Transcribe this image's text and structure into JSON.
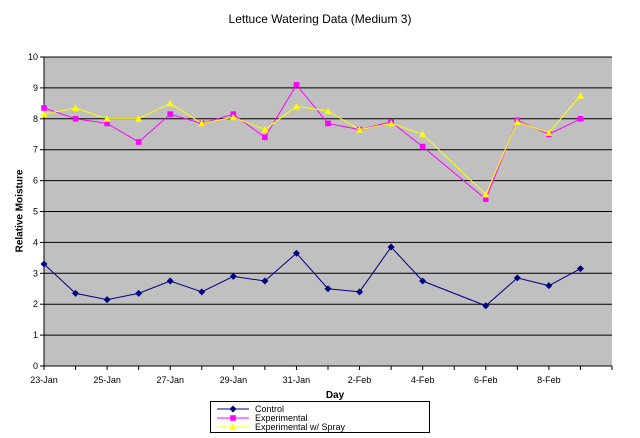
{
  "chart_data": {
    "type": "line",
    "title": "Lettuce Watering Data (Medium 3)",
    "xlabel": "Day",
    "ylabel": "Relative Moisture",
    "ylim": [
      0,
      10
    ],
    "yticks": [
      "0",
      "1",
      "2",
      "3",
      "4",
      "5",
      "6",
      "7",
      "8",
      "9",
      "10"
    ],
    "xtick_labels": [
      "23-Jan",
      "25-Jan",
      "27-Jan",
      "29-Jan",
      "31-Jan",
      "2-Feb",
      "4-Feb",
      "6-Feb",
      "8-Feb"
    ],
    "x_days": [
      "23-Jan",
      "24-Jan",
      "25-Jan",
      "26-Jan",
      "27-Jan",
      "28-Jan",
      "29-Jan",
      "30-Jan",
      "31-Jan",
      "1-Feb",
      "2-Feb",
      "3-Feb",
      "4-Feb",
      "5-Feb",
      "6-Feb",
      "7-Feb",
      "8-Feb",
      "9-Feb"
    ],
    "grid": true,
    "legend_position": "bottom",
    "series": [
      {
        "name": "Control",
        "color": "#000080",
        "marker": "diamond",
        "x": [
          "23-Jan",
          "24-Jan",
          "25-Jan",
          "26-Jan",
          "27-Jan",
          "28-Jan",
          "29-Jan",
          "30-Jan",
          "31-Jan",
          "1-Feb",
          "2-Feb",
          "3-Feb",
          "4-Feb",
          "6-Feb",
          "7-Feb",
          "8-Feb",
          "9-Feb"
        ],
        "values": [
          3.3,
          2.35,
          2.15,
          2.35,
          2.75,
          2.4,
          2.9,
          2.75,
          3.65,
          2.5,
          2.4,
          3.85,
          2.75,
          1.95,
          2.85,
          2.6,
          3.15
        ]
      },
      {
        "name": "Experimental",
        "color": "#ff00ff",
        "marker": "square",
        "x": [
          "23-Jan",
          "24-Jan",
          "25-Jan",
          "26-Jan",
          "27-Jan",
          "28-Jan",
          "29-Jan",
          "30-Jan",
          "31-Jan",
          "1-Feb",
          "2-Feb",
          "3-Feb",
          "4-Feb",
          "6-Feb",
          "7-Feb",
          "8-Feb",
          "9-Feb"
        ],
        "values": [
          8.35,
          8.0,
          7.85,
          7.25,
          8.15,
          7.85,
          8.15,
          7.4,
          9.1,
          7.85,
          7.65,
          7.9,
          7.1,
          5.4,
          7.95,
          7.5,
          8.0
        ]
      },
      {
        "name": "Experimental w/ Spray",
        "color": "#ffff00",
        "marker": "triangle",
        "x": [
          "23-Jan",
          "24-Jan",
          "25-Jan",
          "26-Jan",
          "27-Jan",
          "28-Jan",
          "29-Jan",
          "30-Jan",
          "31-Jan",
          "1-Feb",
          "2-Feb",
          "3-Feb",
          "4-Feb",
          "6-Feb",
          "7-Feb",
          "8-Feb",
          "9-Feb"
        ],
        "values": [
          8.15,
          8.35,
          8.0,
          8.0,
          8.5,
          7.85,
          8.05,
          7.65,
          8.4,
          8.25,
          7.65,
          7.85,
          7.5,
          5.55,
          7.9,
          7.55,
          8.75
        ]
      }
    ]
  },
  "colors": {
    "plot_background": "#c0c0c0",
    "gridline": "#000000"
  }
}
